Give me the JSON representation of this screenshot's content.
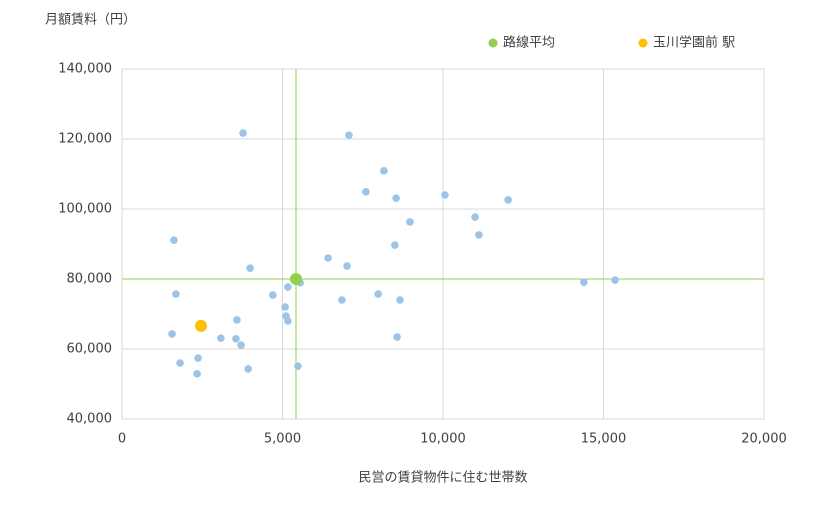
{
  "chart_data": {
    "type": "scatter",
    "y_label": "月額賃料（円）",
    "x_label": "民営の賃貸物件に住む世帯数",
    "xlim": [
      0,
      20000
    ],
    "xticks": [
      0,
      {
        "value": 5000,
        "label": "5,000"
      },
      {
        "value": 10000,
        "label": "10,000"
      },
      {
        "value": 15000,
        "label": "15,000"
      },
      {
        "value": 20000,
        "label": "20,000"
      }
    ],
    "ylim": [
      40000,
      140000
    ],
    "yticks": [
      {
        "value": 40000,
        "label": "40,000"
      },
      {
        "value": 60000,
        "label": "60,000"
      },
      {
        "value": 80000,
        "label": "80,000"
      },
      {
        "value": 100000,
        "label": "100,000"
      },
      {
        "value": 120000,
        "label": "120,000"
      },
      {
        "value": 140000,
        "label": "140,000"
      }
    ],
    "grid": true,
    "legend": "top",
    "series": [
      {
        "color": "#9dc3e6",
        "x": [
          3770,
          7070,
          8160,
          7600,
          8540,
          10060,
          12030,
          11000,
          8970,
          11120,
          1620,
          8500,
          6420,
          7010,
          3990,
          14390,
          15360,
          5550,
          5170,
          1680,
          4700,
          7980,
          6850,
          8660,
          5080,
          5110,
          5170,
          3580,
          1560,
          3080,
          3550,
          8570,
          3710,
          2370,
          1810,
          5480,
          3930,
          2340
        ],
        "values": [
          121700,
          121100,
          110900,
          104900,
          103100,
          104000,
          102600,
          97700,
          96300,
          92600,
          91100,
          89700,
          86000,
          83700,
          83100,
          79100,
          79700,
          78900,
          77700,
          75700,
          75400,
          75700,
          74000,
          74000,
          72000,
          69400,
          68000,
          68300,
          64300,
          63100,
          62900,
          63400,
          61100,
          57400,
          56000,
          55100,
          54300,
          52900
        ]
      },
      {
        "name": "路線平均",
        "color": "#92d050",
        "crosshair": true,
        "x": [
          5420
        ],
        "values": [
          80000
        ]
      },
      {
        "name": "玉川学園前 駅",
        "color": "#ffc000",
        "x": [
          2460
        ],
        "values": [
          66600
        ]
      }
    ]
  }
}
